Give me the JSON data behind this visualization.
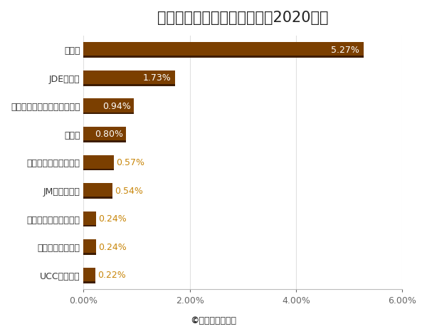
{
  "title": "コーヒー業界の市場シェア（2020年）",
  "categories": [
    "UCC上島珈琲",
    "クラフトハインツ",
    "ストロース・グループ",
    "JMスマッカー",
    "ルイージ・ラバッツァ",
    "チボー",
    "キューリグドクターペッパー",
    "JDEピーツ",
    "ネスレ"
  ],
  "values": [
    0.22,
    0.24,
    0.24,
    0.54,
    0.57,
    0.8,
    0.94,
    1.73,
    5.27
  ],
  "bar_color": "#7B3F00",
  "bar_color_dark": "#3D1C00",
  "text_color_gold": "#C8860A",
  "text_color_white": "#FFFFFF",
  "xlabel": "",
  "ylabel": "",
  "xlim": [
    0,
    6.0
  ],
  "xticks": [
    0.0,
    2.0,
    4.0,
    6.0
  ],
  "xtick_labels": [
    "0.00%",
    "2.00%",
    "4.00%",
    "6.00%"
  ],
  "footer": "©業界再編の動向",
  "title_fontsize": 15,
  "tick_fontsize": 9,
  "label_fontsize": 9,
  "background_color": "#FFFFFF",
  "value_labels": [
    "0.22%",
    "0.24%",
    "0.24%",
    "0.54%",
    "0.57%",
    "0.80%",
    "0.94%",
    "1.73%",
    "5.27%"
  ]
}
